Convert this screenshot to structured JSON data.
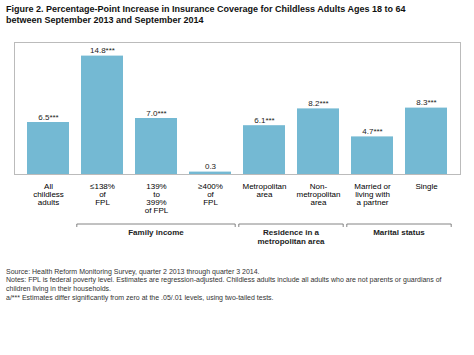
{
  "chart_data": {
    "type": "bar",
    "title": "Figure 2. Percentage-Point Increase in Insurance Coverage for Childless Adults Ages 18 to 64",
    "subtitle": "between September 2013 and September 2014",
    "categories": [
      "All\nchildless\nadults",
      "≤138%\nof\nFPL",
      "139%\nto\n399%\nof FPL",
      "≥400%\nof\nFPL",
      "Metropolitan\narea",
      "Non-\nmetropolitan\narea",
      "Married or\nliving with\na partner",
      "Single"
    ],
    "values": [
      6.5,
      14.8,
      7.0,
      0.3,
      6.1,
      8.2,
      4.7,
      8.3
    ],
    "value_labels": [
      "6.5***",
      "14.8***",
      "7.0***",
      "0.3",
      "6.1***",
      "8.2***",
      "4.7***",
      "8.3***"
    ],
    "data_labels": true,
    "color": "#74b9d3",
    "ylim": [
      0,
      16.5
    ],
    "yticks": [],
    "tick_labels": "x",
    "grid": false,
    "groups": [
      {
        "label": "Family income",
        "categories": [
          "≤138%\nof\nFPL",
          "139%\nto\n399%\nof FPL",
          "≥400%\nof\nFPL"
        ]
      },
      {
        "label": "Residence in a\nmetropolitan area",
        "categories": [
          "Metropolitan\narea",
          "Non-\nmetropolitan\narea"
        ]
      },
      {
        "label": "Marital status",
        "categories": [
          "Married or\nliving with\na partner",
          "Single"
        ]
      }
    ],
    "notes": [
      "Source: Health Reform Monitoring Survey, quarter 2 2013 through quarter 3 2014.",
      "Notes:  FPL is federal poverty level.  Estimates are regression-adjusted.  Childless adults include all adults who are not parents or guardians of",
      "children living in their households.",
      "a/*** Estimates differ significantly from zero at the .05/.01 levels, using two-tailed tests."
    ]
  }
}
